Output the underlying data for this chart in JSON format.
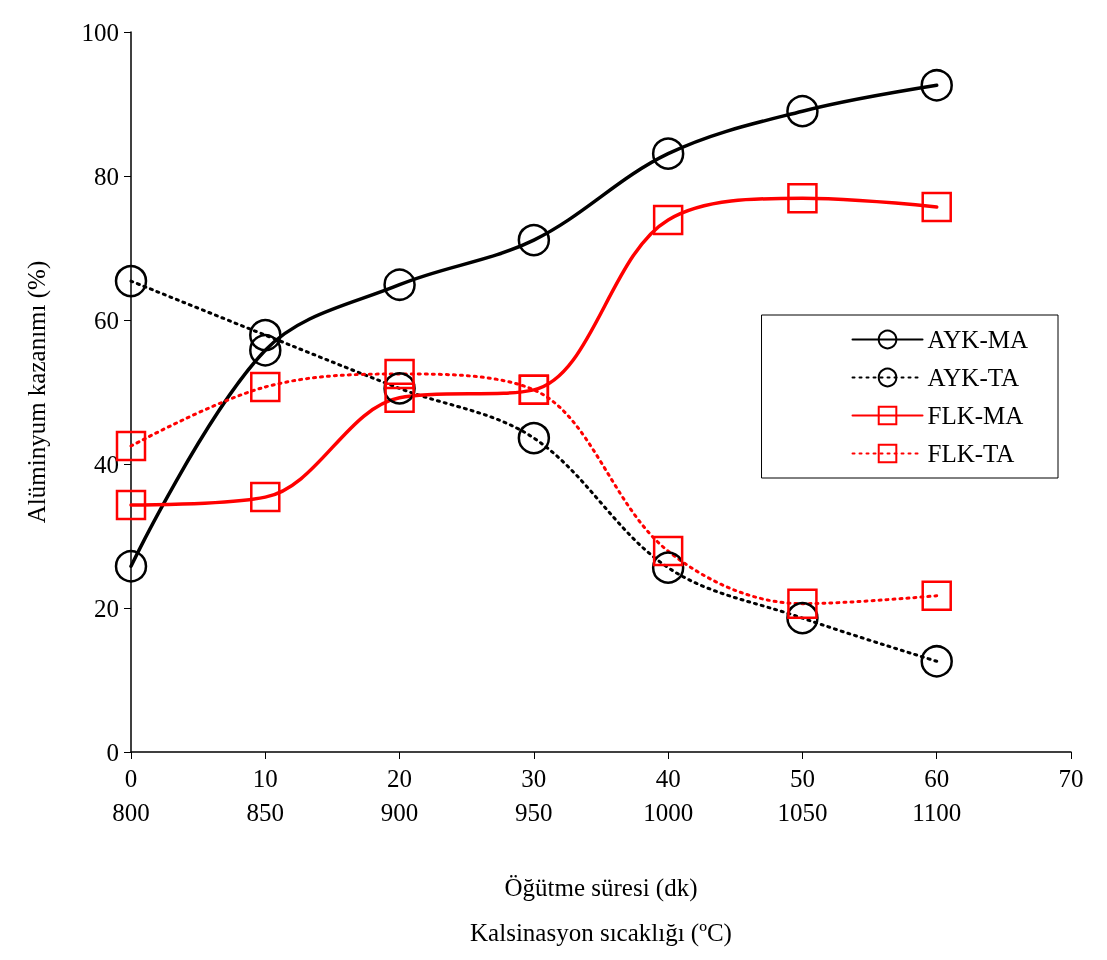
{
  "chart_data": {
    "type": "line",
    "xlabel": "Öğütme süresi (dk)",
    "ylabel": "Alüminyum kazanımı (%)",
    "x2label": "Kalsinasyon sıcaklığı (ºC)",
    "x": [
      0,
      10,
      20,
      30,
      40,
      50,
      60
    ],
    "xlim": [
      0,
      70
    ],
    "xticks": [
      0,
      10,
      20,
      30,
      40,
      50,
      60,
      70
    ],
    "x2lim": [
      800,
      1150
    ],
    "x2ticks": [
      800,
      850,
      900,
      950,
      1000,
      1050,
      1100
    ],
    "ylim": [
      0,
      100
    ],
    "yticks": [
      0,
      20,
      40,
      60,
      80,
      100
    ],
    "grid": false,
    "legend": "right",
    "series": [
      {
        "name": "AYK-MA",
        "color": "#000000",
        "marker": "circle",
        "line_style": "solid",
        "values": [
          25.8,
          55.8,
          64.9,
          71.1,
          83.1,
          89.0,
          92.6
        ]
      },
      {
        "name": "AYK-TA",
        "color": "#000000",
        "marker": "circle",
        "line_style": "dotted",
        "values": [
          65.4,
          57.9,
          50.5,
          43.6,
          25.6,
          18.6,
          12.6
        ]
      },
      {
        "name": "FLK-MA",
        "color": "#ff0000",
        "marker": "square",
        "line_style": "solid",
        "values": [
          34.3,
          35.4,
          49.2,
          50.3,
          73.9,
          76.9,
          75.7
        ]
      },
      {
        "name": "FLK-TA",
        "color": "#ff0000",
        "marker": "square",
        "line_style": "dotted",
        "values": [
          42.5,
          50.7,
          52.5,
          50.3,
          27.9,
          20.6,
          21.7
        ]
      }
    ]
  }
}
